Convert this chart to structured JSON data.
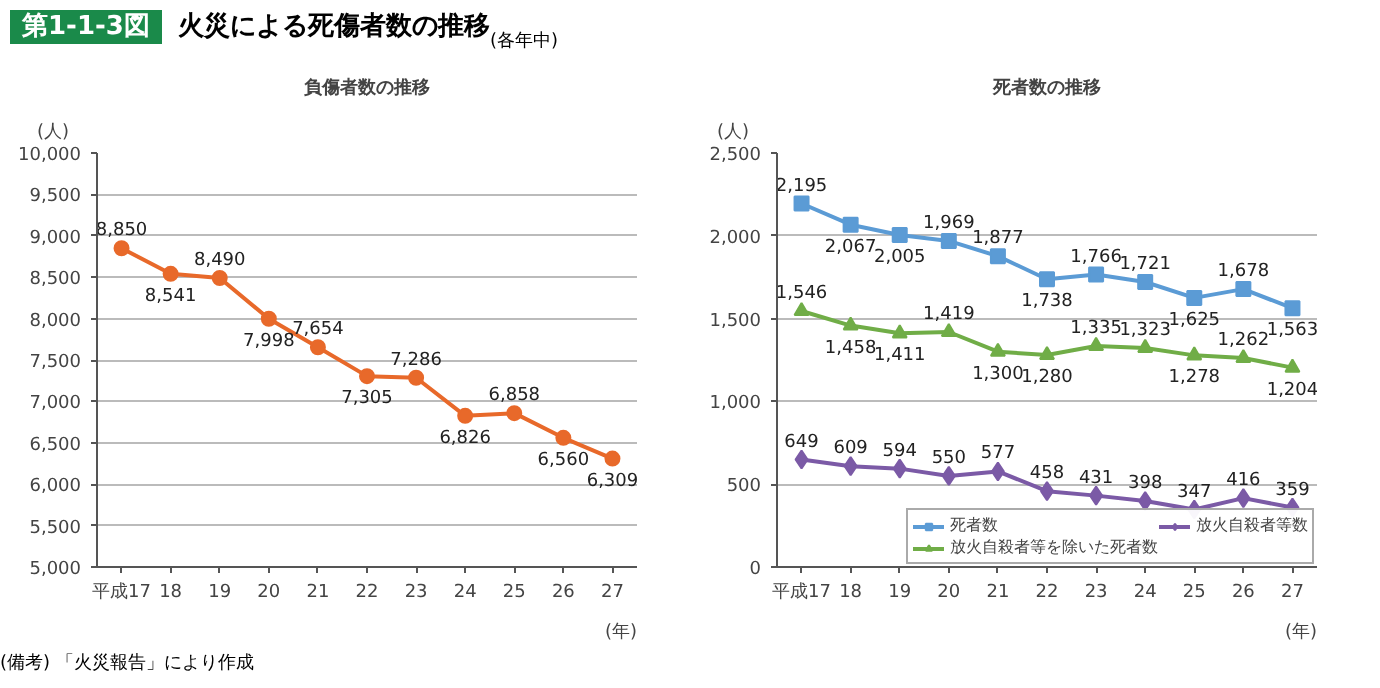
{
  "chart_data": [
    {
      "type": "line",
      "title": "負傷者数の推移",
      "ylabel": "(人)",
      "xlabel": "(年)",
      "annotations": [
        "第1-1-3図",
        "火災による死傷者数の推移",
        "(備考) 「火災報告」により作成"
      ],
      "categories": [
        "平成17",
        "18",
        "19",
        "20",
        "21",
        "22",
        "23",
        "24",
        "25",
        "26",
        "27"
      ],
      "series": [
        {
          "color": "#e8692a",
          "values": [
            8850,
            8541,
            8490,
            7998,
            7654,
            7305,
            7286,
            6826,
            6858,
            6560,
            6309
          ]
        }
      ],
      "ylim": [
        5000,
        10000
      ],
      "yticks": [
        {
          "value": 5000,
          "label": "5,000"
        },
        {
          "value": 5500,
          "label": "5,500"
        },
        {
          "value": 6000,
          "label": "6,000"
        },
        {
          "value": 6500,
          "label": "6,500"
        },
        {
          "value": 7000,
          "label": "7,000"
        },
        {
          "value": 7500,
          "label": "7,500"
        },
        {
          "value": 8000,
          "label": "8,000"
        },
        {
          "value": 8500,
          "label": "8,500"
        },
        {
          "value": 9000,
          "label": "9,000"
        },
        {
          "value": 9500,
          "label": "9,500"
        },
        {
          "value": 10000,
          "label": "10,000"
        }
      ],
      "value_labels": [
        "8,850",
        "8,541",
        "8,490",
        "7,998",
        "7,654",
        "7,305",
        "7,286",
        "6,826",
        "6,858",
        "6,560",
        "6,309"
      ],
      "grid": "y",
      "marker": "circle",
      "legend": false
    },
    {
      "type": "line",
      "title": "死者数の推移",
      "ylabel": "(人)",
      "xlabel": "(年)",
      "annotations": [
        "(各年中)"
      ],
      "categories": [
        "平成17",
        "18",
        "19",
        "20",
        "21",
        "22",
        "23",
        "24",
        "25",
        "26",
        "27"
      ],
      "series": [
        {
          "name": "死者数",
          "color": "#5b9bd5",
          "marker": "square",
          "values": [
            2195,
            2067,
            2005,
            1969,
            1877,
            1738,
            1766,
            1721,
            1625,
            1678,
            1563
          ],
          "value_labels": [
            "2,195",
            "2,067",
            "2,005",
            "1,969",
            "1,877",
            "1,738",
            "1,766",
            "1,721",
            "1,625",
            "1,678",
            "1,563"
          ]
        },
        {
          "name": "放火自殺者等を除いた死者数",
          "color": "#70ad47",
          "marker": "triangle",
          "values": [
            1546,
            1458,
            1411,
            1419,
            1300,
            1280,
            1335,
            1323,
            1278,
            1262,
            1204
          ],
          "value_labels": [
            "1,546",
            "1,458",
            "1,411",
            "1,419",
            "1,300",
            "1,280",
            "1,335",
            "1,323",
            "1,278",
            "1,262",
            "1,204"
          ]
        },
        {
          "name": "放火自殺者等数",
          "color": "#7b5aa6",
          "marker": "diamond",
          "values": [
            649,
            609,
            594,
            550,
            577,
            458,
            431,
            398,
            347,
            416,
            359
          ],
          "value_labels": [
            "649",
            "609",
            "594",
            "550",
            "577",
            "458",
            "431",
            "398",
            "347",
            "416",
            "359"
          ]
        }
      ],
      "ylim": [
        0,
        2500
      ],
      "yticks": [
        0,
        500,
        {
          "value": 1000,
          "label": "1,000"
        },
        {
          "value": 1500,
          "label": "1,500"
        },
        {
          "value": 2000,
          "label": "2,000"
        },
        {
          "value": 2500,
          "label": "2,500"
        }
      ],
      "grid": "y",
      "legend": "bottom right"
    }
  ]
}
